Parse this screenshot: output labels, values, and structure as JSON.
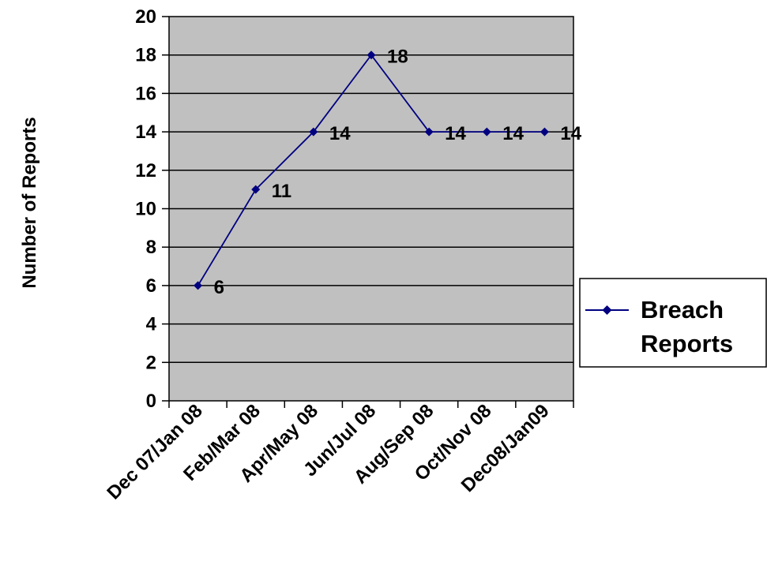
{
  "chart_data": {
    "type": "line",
    "title": "",
    "xlabel": "",
    "ylabel": "Number of Reports",
    "ylim": [
      0,
      20
    ],
    "yticks": [
      "0",
      "2",
      "4",
      "6",
      "8",
      "10",
      "12",
      "14",
      "16",
      "18",
      "20"
    ],
    "x_tick_labels": [
      "Dec 07/Jan 08",
      "Feb/Mar 08",
      "Apr/May 08",
      "Jun/Jul 08",
      "Aug/Sep 08",
      "Oct/Nov 08",
      "Dec08/Jan09"
    ],
    "grid": "horizontal",
    "legend_position": "right",
    "series": [
      {
        "name": "Breach Reports",
        "legend_lines": [
          "Breach",
          "Reports"
        ],
        "color": "#000080",
        "values": [
          6,
          11,
          14,
          18,
          14,
          14,
          14
        ],
        "data_labels": [
          "6",
          "11",
          "14",
          "18",
          "14",
          "14",
          "14"
        ]
      }
    ],
    "plot_background": "#c0c0c0"
  }
}
